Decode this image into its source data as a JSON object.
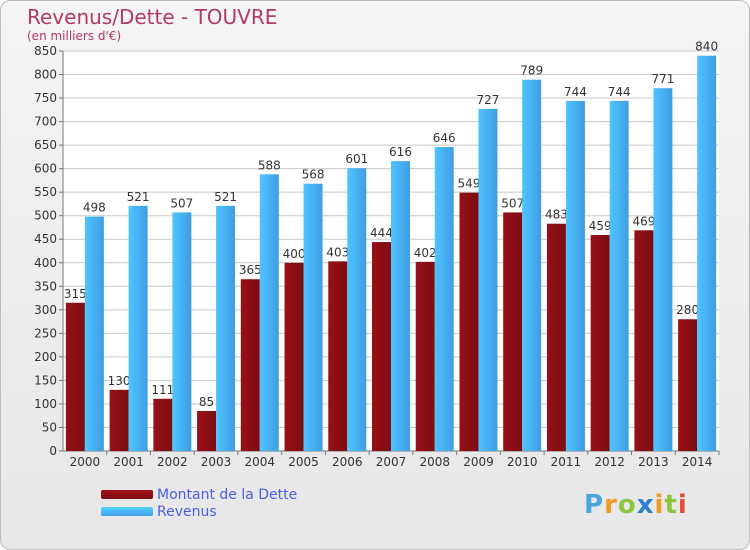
{
  "header": {
    "title": "Revenus/Dette - TOUVRE",
    "subtitle": "(en milliers d'€)"
  },
  "legend": {
    "items": [
      {
        "label": "Montant de la Dette",
        "color": "#7a0d12"
      },
      {
        "label": "Revenus",
        "color": "#3f9de3"
      }
    ]
  },
  "logo": {
    "letters": [
      "P",
      "r",
      "o",
      "x",
      "i",
      "t",
      "i"
    ],
    "colors": [
      "#4aa7e0",
      "#f29a1f",
      "#8cc63f",
      "#2f7fd0",
      "#f29a1f",
      "#8cc63f",
      "#e24a3a"
    ]
  },
  "chart_data": {
    "type": "bar",
    "categories": [
      "2000",
      "2001",
      "2002",
      "2003",
      "2004",
      "2005",
      "2006",
      "2007",
      "2008",
      "2009",
      "2010",
      "2011",
      "2012",
      "2013",
      "2014"
    ],
    "series": [
      {
        "name": "Montant de la Dette",
        "color": "#7a0d12",
        "values": [
          315,
          130,
          111,
          85,
          365,
          400,
          403,
          444,
          402,
          549,
          507,
          483,
          459,
          469,
          280
        ]
      },
      {
        "name": "Revenus",
        "color": "#3f9de3",
        "values": [
          498,
          521,
          507,
          521,
          588,
          568,
          601,
          616,
          646,
          727,
          789,
          744,
          744,
          771,
          840
        ]
      }
    ],
    "ylim": [
      0,
      850
    ],
    "ytick_step": 50,
    "grid": true
  }
}
